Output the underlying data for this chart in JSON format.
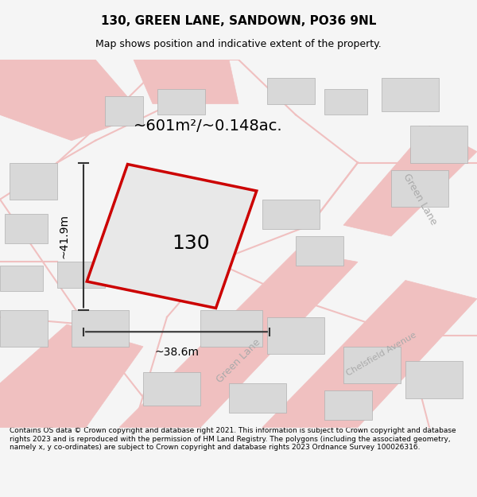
{
  "title": "130, GREEN LANE, SANDOWN, PO36 9NL",
  "subtitle": "Map shows position and indicative extent of the property.",
  "area_text": "~601m²/~0.148ac.",
  "label_130": "130",
  "dim_height": "~41.9m",
  "dim_width": "~38.6m",
  "footer": "Contains OS data © Crown copyright and database right 2021. This information is subject to Crown copyright and database rights 2023 and is reproduced with the permission of HM Land Registry. The polygons (including the associated geometry, namely x, y co-ordinates) are subject to Crown copyright and database rights 2023 Ordnance Survey 100026316.",
  "bg_color": "#f5f5f5",
  "map_bg": "#ffffff",
  "plot_fill": "#e8e8e8",
  "plot_edge_color": "#cc0000",
  "street_color": "#f0c0c0",
  "building_color": "#d8d8d8",
  "building_edge": "#b0b0b0",
  "road_label_color": "#aaaaaa",
  "dim_line_color": "#333333"
}
